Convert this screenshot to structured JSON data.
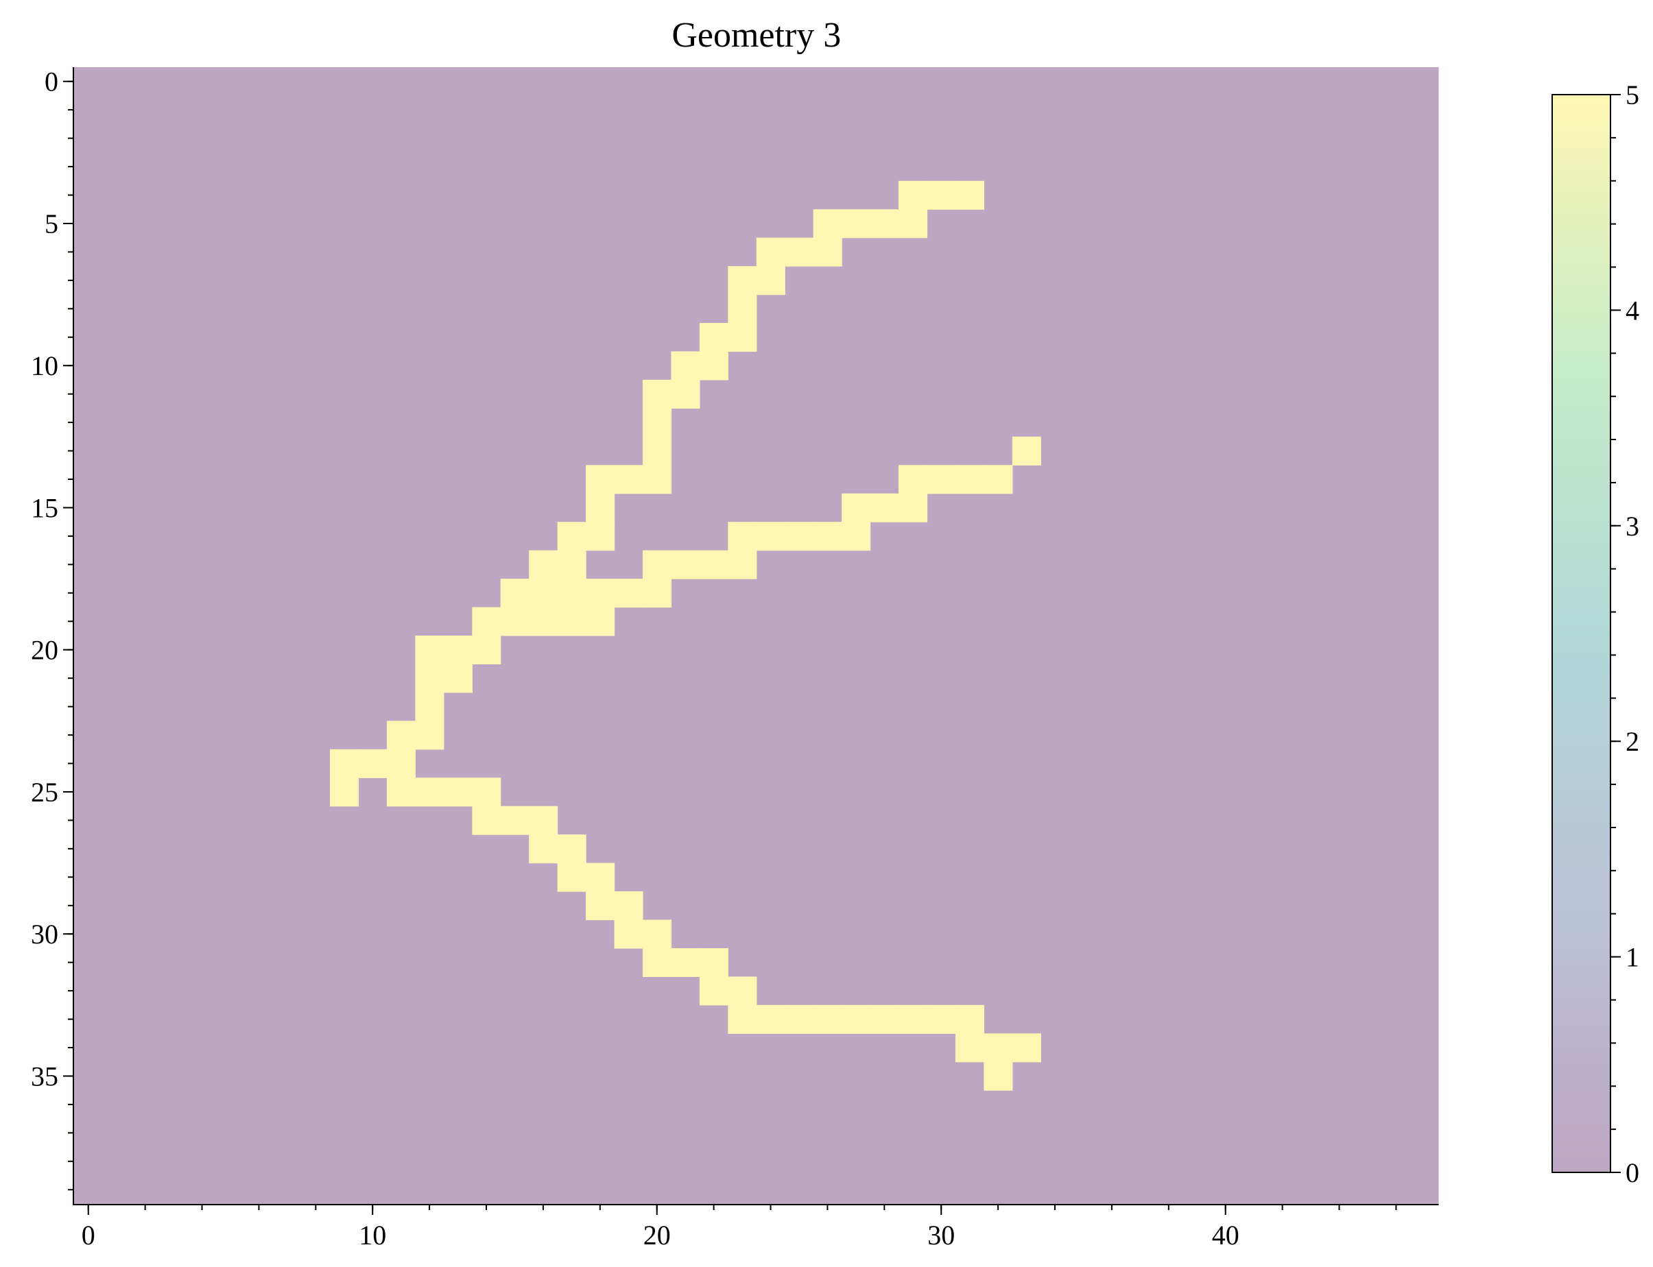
{
  "chart_data": {
    "type": "heatmap",
    "title": "Geometry 3",
    "xlabel": "",
    "ylabel": "",
    "n_cols": 48,
    "n_rows": 40,
    "x_ticks": [
      "0",
      "10",
      "20",
      "30",
      "40"
    ],
    "y_ticks": [
      "0",
      "5",
      "10",
      "15",
      "20",
      "25",
      "30",
      "35"
    ],
    "x_tick_values": [
      0,
      10,
      20,
      30,
      40
    ],
    "y_tick_values": [
      0,
      5,
      10,
      15,
      20,
      25,
      30,
      35
    ],
    "background_value": 0,
    "colorbar": {
      "min": 0,
      "max": 5,
      "ticks": [
        "0",
        "1",
        "2",
        "3",
        "4",
        "5"
      ],
      "tick_values": [
        0,
        1,
        2,
        3,
        4,
        5
      ],
      "colors": [
        "#440154",
        "#3b528b",
        "#21918c",
        "#5ec962",
        "#fde725"
      ],
      "alpha": 0.35
    },
    "cells_value_5": [
      [
        4,
        29
      ],
      [
        4,
        30
      ],
      [
        4,
        31
      ],
      [
        5,
        26
      ],
      [
        5,
        27
      ],
      [
        5,
        28
      ],
      [
        5,
        29
      ],
      [
        6,
        24
      ],
      [
        6,
        25
      ],
      [
        6,
        26
      ],
      [
        7,
        23
      ],
      [
        7,
        24
      ],
      [
        8,
        23
      ],
      [
        9,
        22
      ],
      [
        9,
        23
      ],
      [
        10,
        21
      ],
      [
        10,
        22
      ],
      [
        11,
        20
      ],
      [
        11,
        21
      ],
      [
        12,
        20
      ],
      [
        13,
        20
      ],
      [
        13,
        33
      ],
      [
        14,
        18
      ],
      [
        14,
        19
      ],
      [
        14,
        20
      ],
      [
        14,
        29
      ],
      [
        14,
        30
      ],
      [
        14,
        31
      ],
      [
        14,
        32
      ],
      [
        15,
        18
      ],
      [
        15,
        27
      ],
      [
        15,
        28
      ],
      [
        15,
        29
      ],
      [
        16,
        17
      ],
      [
        16,
        18
      ],
      [
        16,
        23
      ],
      [
        16,
        24
      ],
      [
        16,
        25
      ],
      [
        16,
        26
      ],
      [
        16,
        27
      ],
      [
        17,
        16
      ],
      [
        17,
        17
      ],
      [
        17,
        20
      ],
      [
        17,
        21
      ],
      [
        17,
        22
      ],
      [
        17,
        23
      ],
      [
        18,
        15
      ],
      [
        18,
        16
      ],
      [
        18,
        17
      ],
      [
        18,
        18
      ],
      [
        18,
        19
      ],
      [
        18,
        20
      ],
      [
        19,
        14
      ],
      [
        19,
        15
      ],
      [
        19,
        16
      ],
      [
        19,
        17
      ],
      [
        19,
        18
      ],
      [
        20,
        12
      ],
      [
        20,
        13
      ],
      [
        20,
        14
      ],
      [
        21,
        12
      ],
      [
        21,
        13
      ],
      [
        22,
        12
      ],
      [
        23,
        11
      ],
      [
        23,
        12
      ],
      [
        24,
        9
      ],
      [
        24,
        10
      ],
      [
        24,
        11
      ],
      [
        25,
        9
      ],
      [
        25,
        11
      ],
      [
        25,
        12
      ],
      [
        25,
        13
      ],
      [
        25,
        14
      ],
      [
        26,
        14
      ],
      [
        26,
        15
      ],
      [
        26,
        16
      ],
      [
        27,
        16
      ],
      [
        27,
        17
      ],
      [
        28,
        17
      ],
      [
        28,
        18
      ],
      [
        29,
        18
      ],
      [
        29,
        19
      ],
      [
        30,
        19
      ],
      [
        30,
        20
      ],
      [
        31,
        20
      ],
      [
        31,
        21
      ],
      [
        31,
        22
      ],
      [
        32,
        22
      ],
      [
        32,
        23
      ],
      [
        33,
        23
      ],
      [
        33,
        24
      ],
      [
        33,
        25
      ],
      [
        33,
        26
      ],
      [
        33,
        27
      ],
      [
        33,
        28
      ],
      [
        33,
        29
      ],
      [
        33,
        30
      ],
      [
        33,
        31
      ],
      [
        34,
        31
      ],
      [
        34,
        32
      ],
      [
        34,
        33
      ],
      [
        35,
        32
      ]
    ]
  }
}
